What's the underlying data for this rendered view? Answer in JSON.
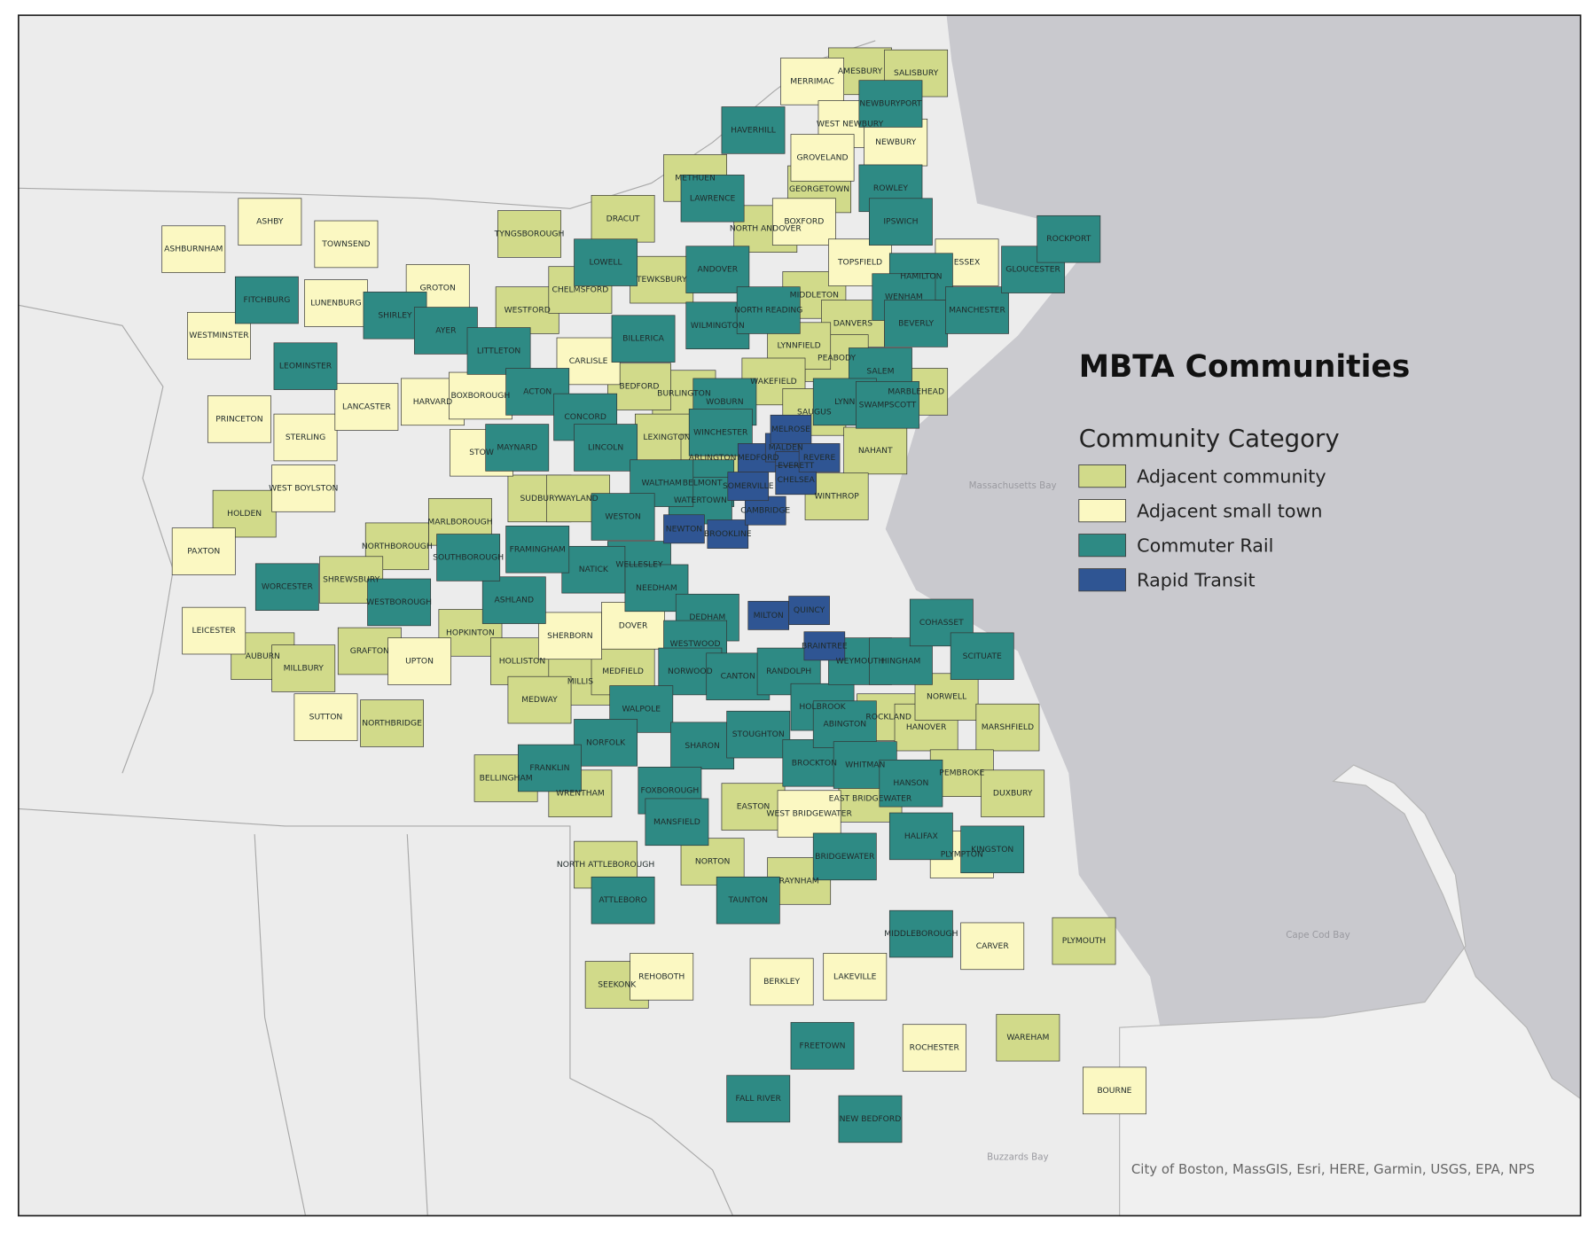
{
  "map": {
    "title": "MBTA Communities",
    "legend_title": "Community Category",
    "attribution": "City of Boston, MassGIS, Esri, HERE, Garmin, USGS, EPA, NPS",
    "water_labels": [
      "Massachusetts Bay",
      "Cape Cod Bay",
      "Buzzards Bay"
    ],
    "categories": [
      {
        "name": "Adjacent community",
        "color": "#d1da8a",
        "towns": [
          "Amesbury",
          "Salisbury",
          "Methuen",
          "Dracut",
          "Tyngsborough",
          "Westford",
          "Chelmsford",
          "Tewksbury",
          "North Andover",
          "Georgetown",
          "Middleton",
          "Danvers",
          "Peabody",
          "Lynnfield",
          "Wakefield",
          "Saugus",
          "Marblehead",
          "Nahant",
          "Winthrop",
          "Burlington",
          "Bedford",
          "Lexington",
          "Arlington",
          "Sudbury",
          "Wayland",
          "Holden",
          "Marlborough",
          "Northborough",
          "Shrewsbury",
          "Hopkinton",
          "Holliston",
          "Millis",
          "Medfield",
          "Medway",
          "Auburn",
          "Millbury",
          "Grafton",
          "Northbridge",
          "Bellingham",
          "Wrentham",
          "North Attleborough",
          "Easton",
          "Norton",
          "Raynham",
          "East Bridgewater",
          "Rockland",
          "Hanover",
          "Norwell",
          "Marshfield",
          "Pembroke",
          "Duxbury",
          "Plymouth",
          "Wareham",
          "Seekonk"
        ]
      },
      {
        "name": "Adjacent small town",
        "color": "#fbf8c2",
        "towns": [
          "Ashburnham",
          "Ashby",
          "Townsend",
          "Westminster",
          "Lunenburg",
          "Groton",
          "Princeton",
          "Sterling",
          "Lancaster",
          "Harvard",
          "Boxborough",
          "Stow",
          "West Boylston",
          "Paxton",
          "Leicester",
          "Sutton",
          "Upton",
          "Carlisle",
          "Dover",
          "Sherborn",
          "Merrimac",
          "West Newbury",
          "Newbury",
          "Groveland",
          "Boxford",
          "Topsfield",
          "Essex",
          "West Bridgewater",
          "Plympton",
          "Carver",
          "Rehoboth",
          "Berkley",
          "Lakeville",
          "Rochester",
          "Bourne"
        ]
      },
      {
        "name": "Commuter Rail",
        "color": "#2e8a84",
        "towns": [
          "Haverhill",
          "Newburyport",
          "Rowley",
          "Ipswich",
          "Lawrence",
          "Andover",
          "Lowell",
          "Billerica",
          "Wilmington",
          "North Reading",
          "Hamilton",
          "Wenham",
          "Beverly",
          "Manchester",
          "Gloucester",
          "Rockport",
          "Salem",
          "Lynn",
          "Swampscott",
          "Fitchburg",
          "Leominster",
          "Shirley",
          "Ayer",
          "Littleton",
          "Acton",
          "Concord",
          "Maynard",
          "Lincoln",
          "Woburn",
          "Winchester",
          "Belmont",
          "Watertown",
          "Waltham",
          "Weston",
          "Wellesley",
          "Needham",
          "Natick",
          "Framingham",
          "Ashland",
          "Southborough",
          "Westborough",
          "Worcester",
          "Dedham",
          "Westwood",
          "Norwood",
          "Canton",
          "Walpole",
          "Norfolk",
          "Franklin",
          "Sharon",
          "Stoughton",
          "Randolph",
          "Holbrook",
          "Foxborough",
          "Mansfield",
          "Attleboro",
          "Taunton",
          "Brockton",
          "Abington",
          "Whitman",
          "Bridgewater",
          "Hanson",
          "Halifax",
          "Kingston",
          "Middleborough",
          "Freetown",
          "Fall River",
          "New Bedford",
          "Weymouth",
          "Hingham",
          "Cohasset",
          "Scituate"
        ]
      },
      {
        "name": "Rapid Transit",
        "color": "#2f5593",
        "towns": [
          "Newton",
          "Brookline",
          "Cambridge",
          "Somerville",
          "Medford",
          "Malden",
          "Melrose",
          "Everett",
          "Chelsea",
          "Revere",
          "Milton",
          "Quincy",
          "Braintree"
        ]
      }
    ]
  }
}
